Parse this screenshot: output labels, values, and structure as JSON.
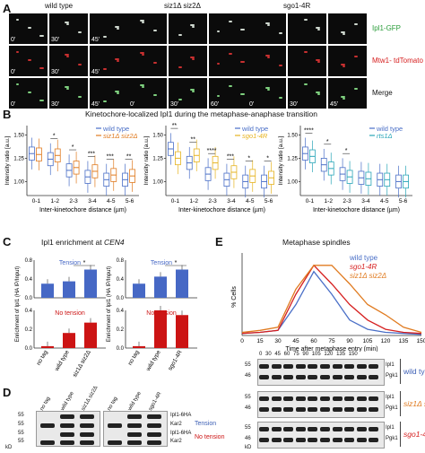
{
  "panelA": {
    "label": "A",
    "groups": [
      "wild type",
      "siz1Δ siz2Δ",
      "sgo1-4R"
    ],
    "rows": [
      "Ipl1-GFP",
      "Mtw1- tdTomato",
      "Merge"
    ],
    "row_colors": [
      "#2a9d3a",
      "#d62020",
      "#111111"
    ],
    "times": [
      [
        "0'",
        "30'",
        "45'"
      ],
      [
        "0'",
        "30'",
        "60'"
      ],
      [
        "0'",
        "30'",
        "45'"
      ]
    ]
  },
  "panelB": {
    "label": "B",
    "title": "Kinetochore-localized Ipl1 during the metaphase-anaphase transition",
    "ylabel": "Intensity ratio [a.u.]",
    "xlabel": "Inter-kinetochore distance (µm)",
    "categories": [
      "0-1",
      "1-2",
      "2-3",
      "3-4",
      "4-5",
      "5-6"
    ],
    "yticks": [
      "1.00",
      "1.25",
      "1.50"
    ],
    "plots": [
      {
        "legend": [
          "wild type",
          "siz1Δ siz2Δ"
        ],
        "colors": [
          "#4a6fc7",
          "#e07b20"
        ],
        "stars": [
          "",
          "*",
          "*",
          "***",
          "***",
          "**"
        ],
        "medians": [
          [
            1.3,
            1.29
          ],
          [
            1.24,
            1.28
          ],
          [
            1.12,
            1.15
          ],
          [
            1.05,
            1.11
          ],
          [
            1.02,
            1.07
          ],
          [
            1.02,
            1.06
          ]
        ]
      },
      {
        "legend": [
          "wild type",
          "sgo1-4R"
        ],
        "colors": [
          "#4a6fc7",
          "#e6b320"
        ],
        "stars": [
          "**",
          "**",
          "****",
          "***",
          "*",
          "*"
        ],
        "medians": [
          [
            1.35,
            1.25
          ],
          [
            1.2,
            1.28
          ],
          [
            1.08,
            1.2
          ],
          [
            1.02,
            1.1
          ],
          [
            1.0,
            1.06
          ],
          [
            1.0,
            1.04
          ]
        ]
      },
      {
        "legend": [
          "wild type",
          "rts1Δ"
        ],
        "colors": [
          "#4a6fc7",
          "#2aa6b8"
        ],
        "stars": [
          "****",
          "*",
          "*",
          "",
          "",
          ""
        ],
        "medians": [
          [
            1.3,
            1.27
          ],
          [
            1.18,
            1.14
          ],
          [
            1.08,
            1.05
          ],
          [
            1.04,
            1.03
          ],
          [
            1.02,
            1.02
          ],
          [
            1.0,
            1.0
          ]
        ]
      }
    ]
  },
  "panelC": {
    "label": "C",
    "title_prefix": "Ipl1 enrichment at ",
    "title_locus": "CEN4",
    "ylabel": "Enrichment of Ipl1 (HA IP/Input)",
    "tension_label": "Tension",
    "notension_label": "No tension",
    "plots": [
      {
        "categories": [
          "no tag",
          "wild type",
          "siz1Δ siz2Δ"
        ],
        "tension": [
          0.3,
          0.35,
          0.6
        ],
        "notension": [
          0.02,
          0.16,
          0.27
        ]
      },
      {
        "categories": [
          "no tag",
          "wild type",
          "sgo1-4R"
        ],
        "tension": [
          0.3,
          0.45,
          0.6
        ],
        "notension": [
          0.02,
          0.4,
          0.35
        ]
      }
    ]
  },
  "panelD": {
    "label": "D",
    "columns": [
      "no tag",
      "wild type",
      "siz1Δ siz2Δ",
      "no tag",
      "wild type",
      "sgo1-4R"
    ],
    "markers": [
      "55",
      "55",
      "55",
      "55"
    ],
    "kd": "kD",
    "bands": [
      "Ipl1-6HA",
      "Kar2",
      "Ipl1-6HA",
      "Kar2"
    ],
    "tension": "Tension",
    "notension": "No tension"
  },
  "panelE": {
    "label": "E",
    "chart_data": {
      "type": "line",
      "title": "Metaphase spindles",
      "xlabel": "Time after metaphase entry (min)",
      "ylabel": "% Cells",
      "x": [
        0,
        15,
        30,
        45,
        60,
        75,
        90,
        105,
        120,
        135,
        150
      ],
      "xticks": [
        0,
        15,
        30,
        45,
        60,
        75,
        90,
        105,
        120,
        135,
        150
      ],
      "series": [
        {
          "name": "wild type",
          "color": "#4a6fc7",
          "values": [
            2,
            3,
            5,
            30,
            62,
            40,
            15,
            6,
            3,
            2,
            1
          ]
        },
        {
          "name": "sgo1-4R",
          "color": "#d62020",
          "values": [
            2,
            3,
            5,
            40,
            68,
            50,
            30,
            15,
            6,
            3,
            2
          ]
        },
        {
          "name": "siz1Δ siz2Δ",
          "color": "#e07b20",
          "values": [
            3,
            5,
            8,
            45,
            68,
            68,
            50,
            30,
            20,
            8,
            3
          ]
        }
      ]
    },
    "blot": {
      "lanes": [
        "0",
        "30",
        "45",
        "60",
        "75",
        "90",
        "105",
        "120",
        "135",
        "150"
      ],
      "markers": [
        "55",
        "46"
      ],
      "kd": "kD",
      "rows": [
        {
          "strain": "wild type",
          "color": "#3c5fb5",
          "bands": [
            "Ipl1",
            "Pgk1"
          ]
        },
        {
          "strain": "siz1Δ siz2Δ",
          "color": "#e07b20",
          "bands": [
            "Ipl1",
            "Pgk1"
          ]
        },
        {
          "strain": "sgo1-4R",
          "color": "#d62020",
          "bands": [
            "Ipl1",
            "Pgk1"
          ]
        }
      ]
    }
  }
}
